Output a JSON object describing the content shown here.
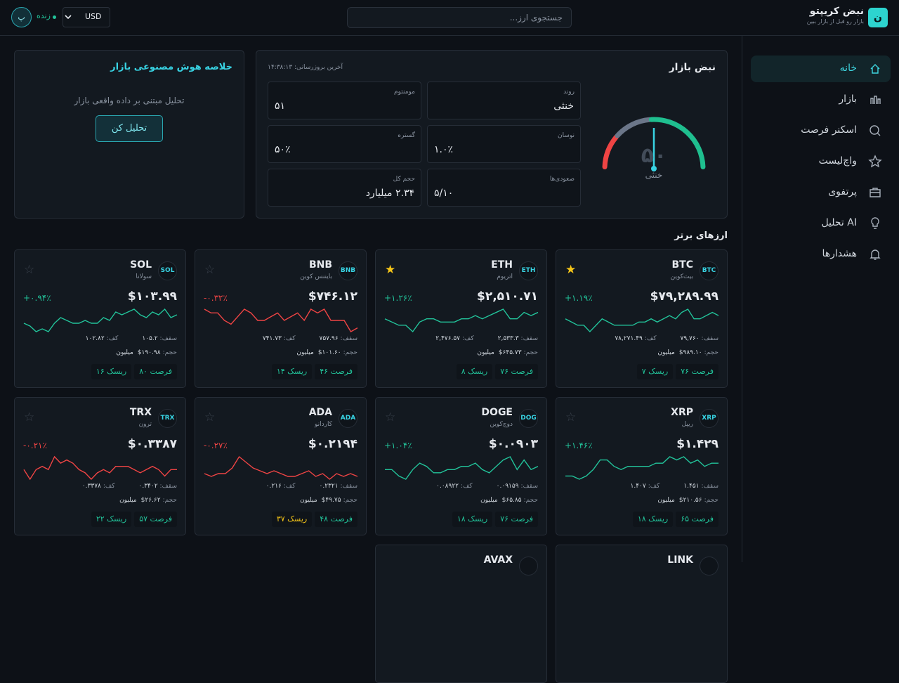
{
  "header": {
    "logo": "ن",
    "title": "نبض کریپتو",
    "subtitle": "بازار رو قبل از بازار ببین",
    "search_placeholder": "جستجوی ارز...",
    "currency": "USD",
    "status": "زنده",
    "avatar": "پ"
  },
  "sidebar": {
    "items": [
      "خانه",
      "بازار",
      "اسکنر فرصت",
      "واچ‌لیست",
      "پرتفوی",
      "تحلیل AI",
      "هشدارها"
    ],
    "active": 0
  },
  "market_pulse": {
    "title": "نبض بازار",
    "updated": "آخرین بروزرسانی: ۱۴:۳۸:۱۳",
    "gauge": {
      "value": {
        "value": 50,
        "label": "۵۰"
      },
      "range": [
        0,
        100
      ],
      "state": "خنثی"
    },
    "metrics": [
      {
        "label": "روند",
        "value": "خنثی"
      },
      {
        "label": "مومنتوم",
        "value": "۵۱"
      },
      {
        "label": "نوسان",
        "value": "۱.۰٪"
      },
      {
        "label": "گستره",
        "value": "۵۰٪"
      },
      {
        "label": "صعودی‌ها",
        "value": "۵/۱۰"
      },
      {
        "label": "حجم کل",
        "value": "۲.۳۴ میلیارد"
      }
    ]
  },
  "ai_summary": {
    "title": "خلاصه هوش مصنوعی بازار",
    "description": "تحلیل مبتنی بر داده واقعی بازار",
    "button": "تحلیل کن"
  },
  "top_coins": {
    "title": "ارزهای برتر",
    "labels": {
      "high": "سقف:",
      "low": "کف:",
      "volume": "حجم:",
      "volume_unit": "میلیون"
    },
    "coins": [
      {
        "badge": "BTC",
        "symbol": "BTC",
        "name": "بیت‌کوین",
        "starred": true,
        "price": "$۷۹,۲۸۹.۹۹",
        "change": "+۱.۱۹٪",
        "color": "#22c39a",
        "high": "۷۹,۷۶۰",
        "low": "۷۸,۲۷۱.۴۹",
        "volume": "$۹۸۹.۱۰",
        "opportunity": "فرصت ۷۶",
        "risk": "ریسک ۷",
        "risk_color": "#22c39a",
        "spark": [
          5,
          4,
          3,
          3,
          1,
          3,
          5,
          4,
          3,
          3,
          3,
          3,
          4,
          4,
          5,
          4,
          5,
          6,
          5,
          7,
          8,
          5,
          5,
          6,
          7,
          6
        ]
      },
      {
        "badge": "ETH",
        "symbol": "ETH",
        "name": "اتریوم",
        "starred": true,
        "price": "$۲,۵۱۰.۷۱",
        "change": "+۱.۲۶٪",
        "color": "#22c39a",
        "high": "۲,۵۳۳.۳",
        "low": "۲,۴۷۶.۵۷",
        "volume": "$۶۴۵.۷۳",
        "opportunity": "فرصت ۷۶",
        "risk": "ریسک ۸",
        "risk_color": "#22c39a",
        "spark": [
          5,
          4,
          3,
          3,
          1,
          4,
          5,
          5,
          4,
          4,
          4,
          5,
          5,
          6,
          5,
          6,
          7,
          8,
          5,
          5,
          7,
          6,
          7
        ]
      },
      {
        "badge": "BNB",
        "symbol": "BNB",
        "name": "بایننس کوین",
        "starred": false,
        "price": "$۷۴۶.۱۲",
        "change": "-۰.۳۲٪",
        "color": "#ef4444",
        "high": "۷۵۷.۹۶",
        "low": "۷۴۱.۷۳",
        "volume": "$۱۰۱.۶۰",
        "opportunity": "فرصت ۴۶",
        "risk": "ریسک ۱۴",
        "risk_color": "#22c39a",
        "spark": [
          8,
          7,
          7,
          5,
          4,
          6,
          8,
          7,
          5,
          5,
          6,
          7,
          5,
          6,
          7,
          5,
          8,
          7,
          8,
          5,
          5,
          5,
          2,
          3
        ]
      },
      {
        "badge": "SOL",
        "symbol": "SOL",
        "name": "سولانا",
        "starred": false,
        "price": "$۱۰۳.۹۹",
        "change": "+۰.۹۴٪",
        "color": "#22c39a",
        "high": "۱۰۵.۲",
        "low": "۱۰۲.۸۲",
        "volume": "$۱۹۰.۹۸",
        "opportunity": "فرصت ۸۰",
        "risk": "ریسک ۱۶",
        "risk_color": "#22c39a",
        "spark": [
          4,
          3,
          1,
          2,
          1,
          4,
          6,
          5,
          4,
          4,
          5,
          4,
          4,
          6,
          5,
          8,
          7,
          8,
          9,
          7,
          6,
          8,
          7,
          9,
          6,
          7
        ]
      },
      {
        "badge": "XRP",
        "symbol": "XRP",
        "name": "ریپل",
        "starred": false,
        "price": "$۱.۴۲۹",
        "change": "+۱.۴۶٪",
        "color": "#22c39a",
        "high": "۱.۴۵۱",
        "low": "۱.۴۰۷",
        "volume": "$۲۱۰.۵۶",
        "opportunity": "فرصت ۶۵",
        "risk": "ریسک ۱۸",
        "risk_color": "#22c39a",
        "spark": [
          3,
          3,
          2,
          3,
          5,
          8,
          8,
          6,
          5,
          6,
          6,
          6,
          6,
          7,
          7,
          9,
          8,
          9,
          7,
          8,
          6,
          7,
          7
        ]
      },
      {
        "badge": "DOG",
        "symbol": "DOGE",
        "name": "دوج‌کوین",
        "starred": false,
        "price": "$۰.۰۹۰۳",
        "change": "+۱.۰۴٪",
        "color": "#22c39a",
        "high": "۰.۰۹۱۵۹",
        "low": "۰.۰۸۹۲۲",
        "volume": "$۶۵.۸۵",
        "opportunity": "فرصت ۷۶",
        "risk": "ریسک ۱۸",
        "risk_color": "#22c39a",
        "spark": [
          6,
          6,
          4,
          3,
          6,
          8,
          7,
          5,
          5,
          6,
          6,
          7,
          7,
          8,
          6,
          5,
          7,
          9,
          10,
          6,
          9,
          6,
          7
        ]
      },
      {
        "badge": "ADA",
        "symbol": "ADA",
        "name": "کاردانو",
        "starred": false,
        "price": "$۰.۲۱۹۴",
        "change": "-۰.۲۷٪",
        "color": "#ef4444",
        "high": "۰.۲۳۲۱",
        "low": "۰.۲۱۶",
        "volume": "$۴۹.۷۵",
        "opportunity": "فرصت ۴۸",
        "risk": "ریسک ۳۷",
        "risk_color": "#f5c518",
        "spark": [
          4,
          3,
          4,
          4,
          6,
          10,
          8,
          6,
          5,
          4,
          5,
          4,
          3,
          3,
          4,
          5,
          3,
          4,
          2,
          4,
          3,
          4,
          3
        ]
      },
      {
        "badge": "TRX",
        "symbol": "TRX",
        "name": "ترون",
        "starred": false,
        "price": "$۰.۳۳۸۷",
        "change": "-۰.۲۱٪",
        "color": "#ef4444",
        "high": "۰.۳۴۰۲",
        "low": "۰.۳۳۷۸",
        "volume": "$۲۶.۶۲",
        "opportunity": "فرصت ۵۷",
        "risk": "ریسک ۲۲",
        "risk_color": "#22c39a",
        "spark": [
          5,
          2,
          5,
          6,
          5,
          9,
          7,
          8,
          7,
          5,
          4,
          2,
          4,
          5,
          4,
          6,
          6,
          6,
          5,
          4,
          5,
          6,
          5,
          3,
          5,
          5
        ]
      },
      {
        "symbol": "LINK"
      },
      {
        "symbol": "AVAX"
      }
    ]
  }
}
